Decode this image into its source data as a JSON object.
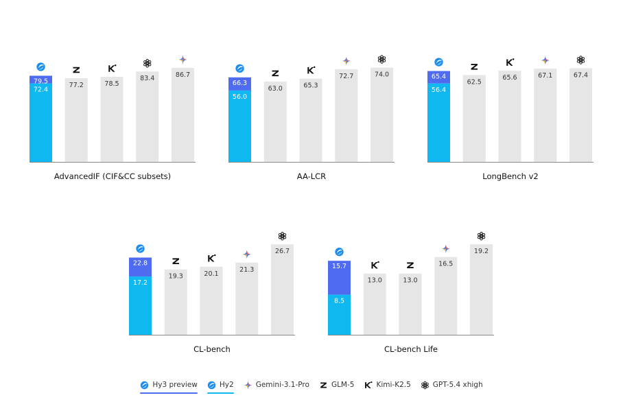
{
  "colors": {
    "hy3": "#4f6cf0",
    "hy2": "#10b8f2",
    "other": "#e6e6e6",
    "label_text": "#333333",
    "inbar_text": "#ffffff"
  },
  "legend": [
    {
      "key": "hy3",
      "label": "Hy3 preview",
      "icon": "hunyuan-icon",
      "underline": "#4f6cf0"
    },
    {
      "key": "hy2",
      "label": "Hy2",
      "icon": "hunyuan-icon",
      "underline": "#10b8f2"
    },
    {
      "key": "gemini",
      "label": "Gemini-3.1-Pro",
      "icon": "gemini-sparkle-icon"
    },
    {
      "key": "glm",
      "label": "GLM-5",
      "icon": "z-logo-icon"
    },
    {
      "key": "kimi",
      "label": "Kimi-K2.5",
      "icon": "k-logo-icon"
    },
    {
      "key": "gpt",
      "label": "GPT-5.4 xhigh",
      "icon": "openai-knot-icon"
    }
  ],
  "chart_data": [
    {
      "type": "bar",
      "title": "AdvancedIF (CIF&CC subsets)",
      "ylim": [
        0,
        100
      ],
      "hy": {
        "hy3": 79.5,
        "hy2": 72.4
      },
      "bars": [
        {
          "model": "glm",
          "icon": "z-logo-icon",
          "value": 77.2
        },
        {
          "model": "kimi",
          "icon": "k-logo-icon",
          "value": 78.5
        },
        {
          "model": "gpt",
          "icon": "openai-knot-icon",
          "value": 83.4
        },
        {
          "model": "gemini",
          "icon": "gemini-sparkle-icon",
          "value": 86.7
        }
      ]
    },
    {
      "type": "bar",
      "title": "AA-LCR",
      "ylim": [
        0,
        85
      ],
      "hy": {
        "hy3": 66.3,
        "hy2": 56.0
      },
      "bars": [
        {
          "model": "glm",
          "icon": "z-logo-icon",
          "value": 63.0
        },
        {
          "model": "kimi",
          "icon": "k-logo-icon",
          "value": 65.3
        },
        {
          "model": "gemini",
          "icon": "gemini-sparkle-icon",
          "value": 72.7
        },
        {
          "model": "gpt",
          "icon": "openai-knot-icon",
          "value": 74.0
        }
      ]
    },
    {
      "type": "bar",
      "title": "LongBench v2",
      "ylim": [
        0,
        78
      ],
      "hy": {
        "hy3": 65.4,
        "hy2": 56.4
      },
      "bars": [
        {
          "model": "glm",
          "icon": "z-logo-icon",
          "value": 62.5
        },
        {
          "model": "kimi",
          "icon": "k-logo-icon",
          "value": 65.6
        },
        {
          "model": "gemini",
          "icon": "gemini-sparkle-icon",
          "value": 67.1
        },
        {
          "model": "gpt",
          "icon": "openai-knot-icon",
          "value": 67.4
        }
      ]
    },
    {
      "type": "bar",
      "title": "CL-bench",
      "ylim": [
        0,
        32
      ],
      "hy": {
        "hy3": 22.8,
        "hy2": 17.2
      },
      "bars": [
        {
          "model": "glm",
          "icon": "z-logo-icon",
          "value": 19.3
        },
        {
          "model": "kimi",
          "icon": "k-logo-icon",
          "value": 20.1
        },
        {
          "model": "gemini",
          "icon": "gemini-sparkle-icon",
          "value": 21.3
        },
        {
          "model": "gpt",
          "icon": "openai-knot-icon",
          "value": 26.7
        }
      ]
    },
    {
      "type": "bar",
      "title": "CL-bench Life",
      "ylim": [
        0,
        23
      ],
      "hy": {
        "hy3": 15.7,
        "hy2": 8.5
      },
      "bars": [
        {
          "model": "kimi",
          "icon": "k-logo-icon",
          "value": 13.0
        },
        {
          "model": "glm",
          "icon": "z-logo-icon",
          "value": 13.0
        },
        {
          "model": "gemini",
          "icon": "gemini-sparkle-icon",
          "value": 16.5
        },
        {
          "model": "gpt",
          "icon": "openai-knot-icon",
          "value": 19.2
        }
      ]
    }
  ]
}
